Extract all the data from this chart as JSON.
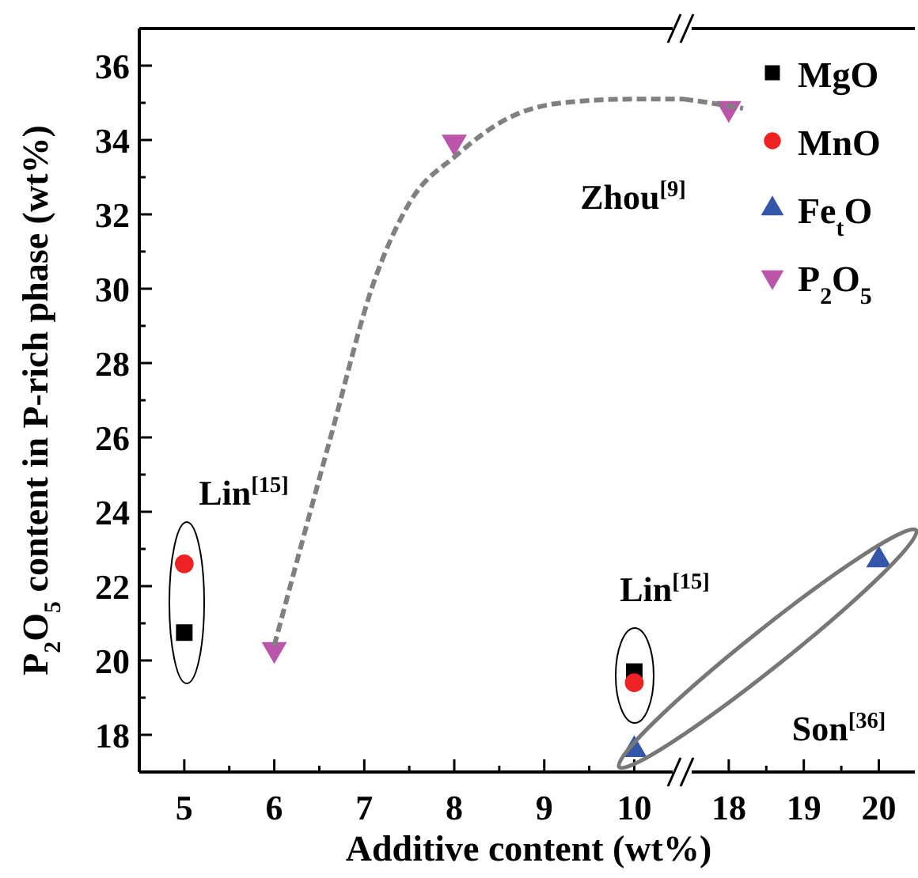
{
  "chart_data": [
    {
      "type": "scatter",
      "xlabel": "Additive content (wt%)",
      "ylabel": "P$_{2}$O$_{5}$ content in P-rich phase (wt%)",
      "xlim": [
        4.5,
        10.55
      ],
      "xticks": [
        5,
        {
          "value": 5.5,
          "label": null
        },
        6,
        {
          "value": 6.5,
          "label": null
        },
        7,
        {
          "value": 7.5,
          "label": null
        },
        8,
        {
          "value": 8.5,
          "label": null
        },
        9,
        {
          "value": 9.5,
          "label": null
        },
        10
      ],
      "ylim": [
        17,
        37
      ],
      "yticks": [
        {
          "value": 17,
          "label": null
        },
        18,
        {
          "value": 19,
          "label": null
        },
        20,
        {
          "value": 21,
          "label": null
        },
        22,
        {
          "value": 23,
          "label": null
        },
        24,
        {
          "value": 25,
          "label": null
        },
        26,
        {
          "value": 27,
          "label": null
        },
        28,
        {
          "value": 29,
          "label": null
        },
        30,
        {
          "value": 31,
          "label": null
        },
        32,
        {
          "value": 33,
          "label": null
        },
        34,
        {
          "value": 35,
          "label": null
        },
        36
      ],
      "legend": "top right",
      "annotations": [
        "Lin$^{[15]}$",
        "Lin$^{[15]}$",
        "Zhou$^{[9]}$"
      ],
      "series": [
        {
          "name": "MgO",
          "color": "#000000",
          "marker": "square",
          "x": [
            5,
            10
          ],
          "values": [
            20.75,
            19.7
          ]
        },
        {
          "name": "MnO",
          "color": "#ee2222",
          "marker": "circle",
          "x": [
            5,
            10
          ],
          "values": [
            22.6,
            19.4
          ]
        },
        {
          "name": "Fe$_{t}$O",
          "color": "#3355aa",
          "marker": "triangle",
          "x": [
            10
          ],
          "values": [
            17.6
          ]
        },
        {
          "name": "P$_{2}$O$_{5}$",
          "color": "#bb55aa",
          "marker": "triangle-down",
          "x": [
            6,
            8
          ],
          "values": [
            20.3,
            33.95
          ]
        },
        {
          "type": "line",
          "color": "#808080",
          "marker": "none",
          "line_style": "dashed",
          "x": [
            6,
            6.62,
            7.11,
            7.5,
            8.03,
            8.61,
            9.2,
            9.98,
            10.44,
            10.55
          ],
          "values": [
            20.4,
            25.95,
            30.2,
            32.3,
            33.6,
            34.6,
            35.0,
            35.1,
            35.1,
            35.1
          ]
        }
      ]
    },
    {
      "type": "scatter",
      "tick_labels": "x",
      "xlim": [
        17.4,
        20.48
      ],
      "xticks": [
        18,
        {
          "value": 18.5,
          "label": null
        },
        19,
        {
          "value": 19.5,
          "label": null
        },
        20
      ],
      "ylim": [
        17,
        37
      ],
      "annotations": [
        "Son$^{[36]}$"
      ],
      "series": [
        {
          "color": "#3355aa",
          "marker": "triangle",
          "x": [
            20
          ],
          "values": [
            22.7
          ]
        },
        {
          "color": "#bb55aa",
          "marker": "triangle-down",
          "x": [
            18
          ],
          "values": [
            34.85
          ]
        },
        {
          "type": "line",
          "color": "#808080",
          "marker": "none",
          "line_style": "dashed",
          "x": [
            17.4,
            17.58,
            18.19
          ],
          "values": [
            35.1,
            35.05,
            34.85
          ]
        }
      ]
    }
  ]
}
